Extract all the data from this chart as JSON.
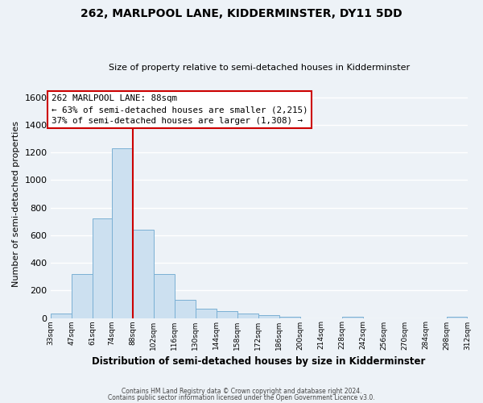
{
  "title1": "262, MARLPOOL LANE, KIDDERMINSTER, DY11 5DD",
  "title2": "Size of property relative to semi-detached houses in Kidderminster",
  "xlabel": "Distribution of semi-detached houses by size in Kidderminster",
  "ylabel": "Number of semi-detached properties",
  "bin_edges": [
    33,
    47,
    61,
    74,
    88,
    102,
    116,
    130,
    144,
    158,
    172,
    186,
    200,
    214,
    228,
    242,
    256,
    270,
    284,
    298,
    312
  ],
  "bar_heights": [
    30,
    320,
    720,
    1230,
    640,
    320,
    130,
    65,
    47,
    30,
    22,
    10,
    0,
    0,
    10,
    0,
    0,
    0,
    0,
    10
  ],
  "bar_color": "#cce0f0",
  "bar_edge_color": "#7ab0d4",
  "tick_labels": [
    "33sqm",
    "47sqm",
    "61sqm",
    "74sqm",
    "88sqm",
    "102sqm",
    "116sqm",
    "130sqm",
    "144sqm",
    "158sqm",
    "172sqm",
    "186sqm",
    "200sqm",
    "214sqm",
    "228sqm",
    "242sqm",
    "256sqm",
    "270sqm",
    "284sqm",
    "298sqm",
    "312sqm"
  ],
  "property_size": 88,
  "vline_color": "#cc0000",
  "ylim": [
    0,
    1650
  ],
  "yticks": [
    0,
    200,
    400,
    600,
    800,
    1000,
    1200,
    1400,
    1600
  ],
  "annotation_title": "262 MARLPOOL LANE: 88sqm",
  "annotation_line1": "← 63% of semi-detached houses are smaller (2,215)",
  "annotation_line2": "37% of semi-detached houses are larger (1,308) →",
  "annotation_box_color": "#ffffff",
  "annotation_box_edge_color": "#cc0000",
  "footer1": "Contains HM Land Registry data © Crown copyright and database right 2024.",
  "footer2": "Contains public sector information licensed under the Open Government Licence v3.0.",
  "background_color": "#edf2f7",
  "grid_color": "#ffffff"
}
